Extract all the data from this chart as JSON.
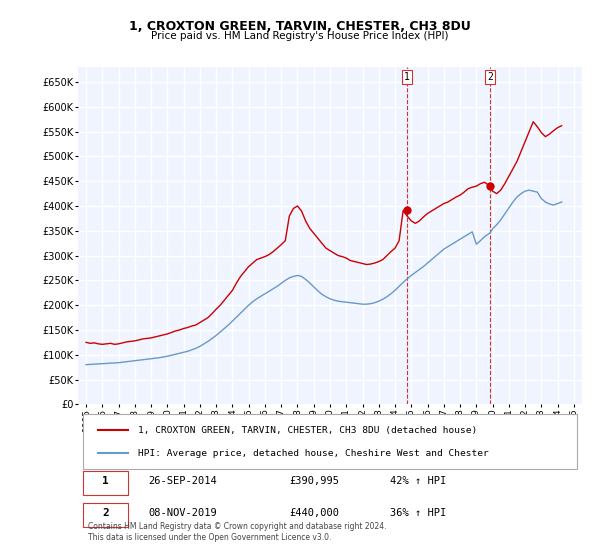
{
  "title": "1, CROXTON GREEN, TARVIN, CHESTER, CH3 8DU",
  "subtitle": "Price paid vs. HM Land Registry's House Price Index (HPI)",
  "background_color": "#ffffff",
  "plot_bg_color": "#f0f4ff",
  "grid_color": "#ffffff",
  "ylim": [
    0,
    680000
  ],
  "yticks": [
    0,
    50000,
    100000,
    150000,
    200000,
    250000,
    300000,
    350000,
    400000,
    450000,
    500000,
    550000,
    600000,
    650000
  ],
  "xtick_years": [
    1995,
    1996,
    1997,
    1998,
    1999,
    2000,
    2001,
    2002,
    2003,
    2004,
    2005,
    2006,
    2007,
    2008,
    2009,
    2010,
    2011,
    2012,
    2013,
    2014,
    2015,
    2016,
    2017,
    2018,
    2019,
    2020,
    2021,
    2022,
    2023,
    2024,
    2025
  ],
  "sale1_x": 2014.74,
  "sale1_y": 390995,
  "sale2_x": 2019.85,
  "sale2_y": 440000,
  "sale1_label": "1",
  "sale2_label": "2",
  "sale1_date": "26-SEP-2014",
  "sale1_price": "£390,995",
  "sale1_hpi": "42% ↑ HPI",
  "sale2_date": "08-NOV-2019",
  "sale2_price": "£440,000",
  "sale2_hpi": "36% ↑ HPI",
  "red_line_color": "#cc0000",
  "blue_line_color": "#6699cc",
  "marker_color_red": "#cc0000",
  "marker_color_blue": "#6699cc",
  "vline_color": "#cc3333",
  "legend1": "1, CROXTON GREEN, TARVIN, CHESTER, CH3 8DU (detached house)",
  "legend2": "HPI: Average price, detached house, Cheshire West and Chester",
  "footer": "Contains HM Land Registry data © Crown copyright and database right 2024.\nThis data is licensed under the Open Government Licence v3.0.",
  "red_x": [
    1995,
    1995.25,
    1995.5,
    1995.75,
    1996,
    1996.25,
    1996.5,
    1996.75,
    1997,
    1997.25,
    1997.5,
    1997.75,
    1998,
    1998.25,
    1998.5,
    1998.75,
    1999,
    1999.25,
    1999.5,
    1999.75,
    2000,
    2000.25,
    2000.5,
    2000.75,
    2001,
    2001.25,
    2001.5,
    2001.75,
    2002,
    2002.25,
    2002.5,
    2002.75,
    2003,
    2003.25,
    2003.5,
    2003.75,
    2004,
    2004.25,
    2004.5,
    2004.75,
    2005,
    2005.25,
    2005.5,
    2005.75,
    2006,
    2006.25,
    2006.5,
    2006.75,
    2007,
    2007.25,
    2007.5,
    2007.75,
    2008,
    2008.25,
    2008.5,
    2008.75,
    2009,
    2009.25,
    2009.5,
    2009.75,
    2010,
    2010.25,
    2010.5,
    2010.75,
    2011,
    2011.25,
    2011.5,
    2011.75,
    2012,
    2012.25,
    2012.5,
    2012.75,
    2013,
    2013.25,
    2013.5,
    2013.75,
    2014,
    2014.25,
    2014.5,
    2014.74,
    2015,
    2015.25,
    2015.5,
    2015.75,
    2016,
    2016.25,
    2016.5,
    2016.75,
    2017,
    2017.25,
    2017.5,
    2017.75,
    2018,
    2018.25,
    2018.5,
    2018.75,
    2019,
    2019.25,
    2019.5,
    2019.85,
    2020,
    2020.25,
    2020.5,
    2020.75,
    2021,
    2021.25,
    2021.5,
    2021.75,
    2022,
    2022.25,
    2022.5,
    2022.75,
    2023,
    2023.25,
    2023.5,
    2023.75,
    2024,
    2024.25
  ],
  "red_y": [
    125000,
    123000,
    124000,
    122000,
    121000,
    122000,
    123000,
    121000,
    122000,
    124000,
    126000,
    127000,
    128000,
    130000,
    132000,
    133000,
    134000,
    136000,
    138000,
    140000,
    142000,
    145000,
    148000,
    150000,
    153000,
    155000,
    158000,
    160000,
    165000,
    170000,
    175000,
    183000,
    192000,
    200000,
    210000,
    220000,
    230000,
    245000,
    258000,
    268000,
    278000,
    285000,
    292000,
    295000,
    298000,
    302000,
    308000,
    315000,
    322000,
    330000,
    380000,
    395000,
    400000,
    390000,
    370000,
    355000,
    345000,
    335000,
    325000,
    315000,
    310000,
    305000,
    300000,
    298000,
    295000,
    290000,
    288000,
    286000,
    284000,
    282000,
    283000,
    285000,
    288000,
    292000,
    300000,
    308000,
    315000,
    330000,
    390995,
    380000,
    370000,
    365000,
    370000,
    378000,
    385000,
    390000,
    395000,
    400000,
    405000,
    408000,
    413000,
    418000,
    422000,
    428000,
    435000,
    438000,
    440000,
    445000,
    448000,
    440000,
    430000,
    425000,
    432000,
    445000,
    460000,
    475000,
    490000,
    510000,
    530000,
    550000,
    570000,
    560000,
    548000,
    540000,
    545000,
    552000,
    558000,
    562000
  ],
  "blue_x": [
    1995,
    1995.25,
    1995.5,
    1995.75,
    1996,
    1996.25,
    1996.5,
    1996.75,
    1997,
    1997.25,
    1997.5,
    1997.75,
    1998,
    1998.25,
    1998.5,
    1998.75,
    1999,
    1999.25,
    1999.5,
    1999.75,
    2000,
    2000.25,
    2000.5,
    2000.75,
    2001,
    2001.25,
    2001.5,
    2001.75,
    2002,
    2002.25,
    2002.5,
    2002.75,
    2003,
    2003.25,
    2003.5,
    2003.75,
    2004,
    2004.25,
    2004.5,
    2004.75,
    2005,
    2005.25,
    2005.5,
    2005.75,
    2006,
    2006.25,
    2006.5,
    2006.75,
    2007,
    2007.25,
    2007.5,
    2007.75,
    2008,
    2008.25,
    2008.5,
    2008.75,
    2009,
    2009.25,
    2009.5,
    2009.75,
    2010,
    2010.25,
    2010.5,
    2010.75,
    2011,
    2011.25,
    2011.5,
    2011.75,
    2012,
    2012.25,
    2012.5,
    2012.75,
    2013,
    2013.25,
    2013.5,
    2013.75,
    2014,
    2014.25,
    2014.5,
    2014.74,
    2015,
    2015.25,
    2015.5,
    2015.75,
    2016,
    2016.25,
    2016.5,
    2016.75,
    2017,
    2017.25,
    2017.5,
    2017.75,
    2018,
    2018.25,
    2018.5,
    2018.75,
    2019,
    2019.25,
    2019.5,
    2019.85,
    2020,
    2020.25,
    2020.5,
    2020.75,
    2021,
    2021.25,
    2021.5,
    2021.75,
    2022,
    2022.25,
    2022.5,
    2022.75,
    2023,
    2023.25,
    2023.5,
    2023.75,
    2024,
    2024.25
  ],
  "blue_y": [
    80000,
    80500,
    81000,
    81500,
    82000,
    82500,
    83000,
    83500,
    84000,
    85000,
    86000,
    87000,
    88000,
    89000,
    90000,
    91000,
    92000,
    93000,
    94000,
    95500,
    97000,
    99000,
    101000,
    103000,
    105000,
    107000,
    110000,
    113000,
    117000,
    122000,
    127000,
    133000,
    139000,
    146000,
    153000,
    160000,
    168000,
    176000,
    184000,
    192000,
    200000,
    207000,
    213000,
    218000,
    223000,
    228000,
    233000,
    238000,
    244000,
    250000,
    255000,
    258000,
    260000,
    258000,
    252000,
    245000,
    237000,
    229000,
    222000,
    217000,
    213000,
    210000,
    208000,
    207000,
    206000,
    205000,
    204000,
    203000,
    202000,
    202000,
    203000,
    205000,
    208000,
    212000,
    217000,
    223000,
    230000,
    238000,
    246000,
    253000,
    260000,
    266000,
    272000,
    278000,
    285000,
    292000,
    299000,
    306000,
    313000,
    318000,
    323000,
    328000,
    333000,
    338000,
    343000,
    348000,
    323000,
    330000,
    338000,
    346000,
    354000,
    362000,
    372000,
    384000,
    396000,
    408000,
    418000,
    425000,
    430000,
    432000,
    430000,
    428000,
    415000,
    408000,
    404000,
    402000,
    405000,
    408000
  ]
}
